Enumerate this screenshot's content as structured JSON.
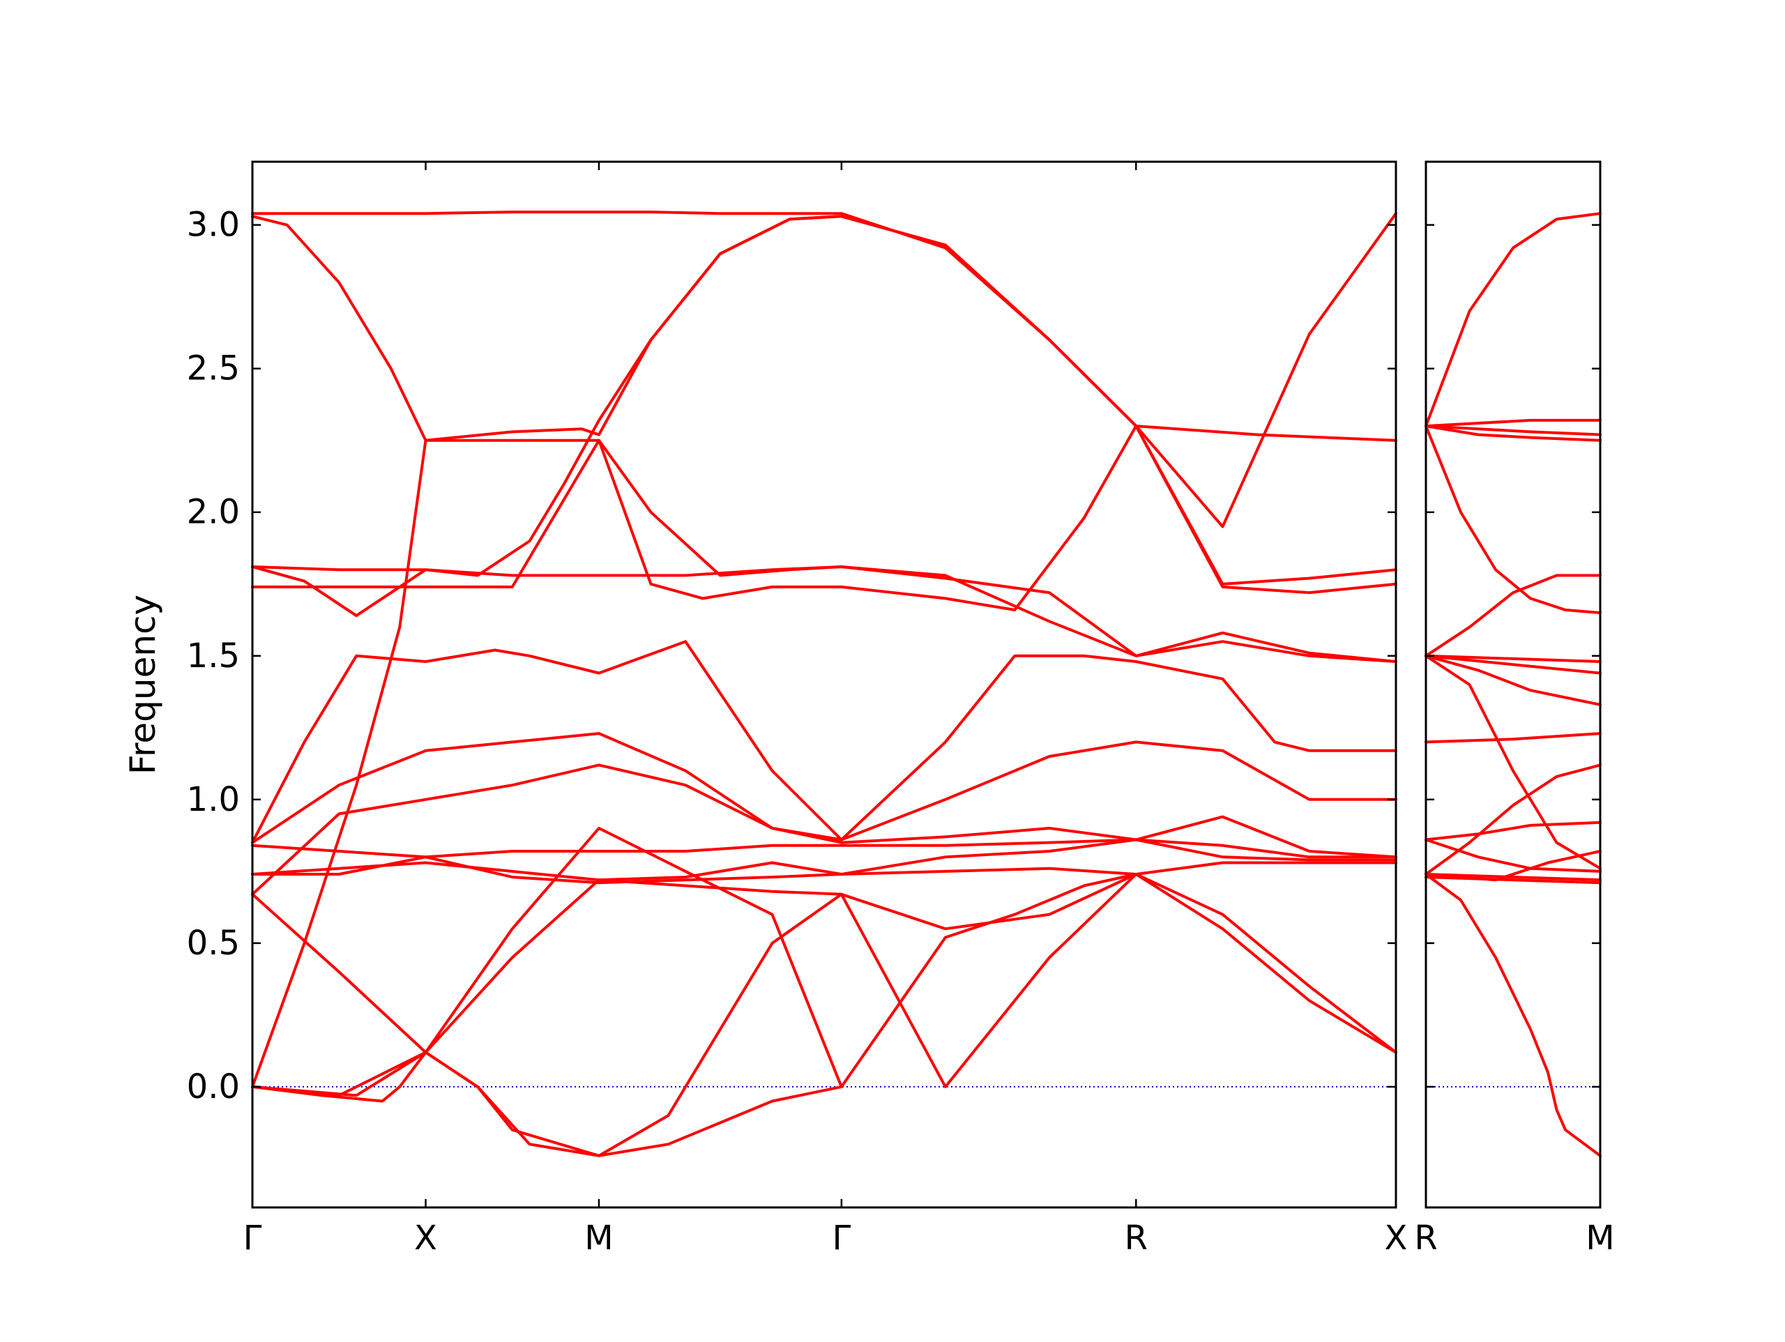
{
  "chart_data": {
    "type": "line",
    "ylabel": "Frequency",
    "ylim": [
      -0.42,
      3.22
    ],
    "y_ticks": [
      "0.0",
      "0.5",
      "1.0",
      "1.5",
      "2.0",
      "2.5",
      "3.0"
    ],
    "y_tick_values": [
      0.0,
      0.5,
      1.0,
      1.5,
      2.0,
      2.5,
      3.0
    ],
    "line_color": "#ff0000",
    "zero_line_color": "#0000cc",
    "grid": false,
    "panels": [
      {
        "name": "main",
        "x_range": [
          0,
          6.6
        ],
        "ticks": [
          {
            "label": "Γ",
            "x": 0.0
          },
          {
            "label": "X",
            "x": 1.0
          },
          {
            "label": "M",
            "x": 2.0
          },
          {
            "label": "Γ",
            "x": 3.4
          },
          {
            "label": "R",
            "x": 5.1
          },
          {
            "label": "X",
            "x": 6.6
          }
        ],
        "series": [
          {
            "x": [
              0,
              0.5,
              1.0,
              1.5,
              2.0,
              2.3,
              2.7,
              3.1,
              3.4,
              4.0,
              4.6,
              5.1,
              5.8,
              6.6
            ],
            "y": [
              3.04,
              3.04,
              3.04,
              3.045,
              3.045,
              3.045,
              3.04,
              3.04,
              3.04,
              2.92,
              2.6,
              2.3,
              2.27,
              2.25
            ]
          },
          {
            "x": [
              0,
              0.2,
              0.5,
              0.8,
              1.0,
              1.5,
              2.0,
              2.3,
              2.7,
              3.1,
              3.4,
              4.0,
              4.6,
              5.1,
              5.6,
              6.1,
              6.6
            ],
            "y": [
              3.03,
              3.0,
              2.8,
              2.5,
              2.25,
              2.25,
              2.25,
              2.0,
              1.78,
              1.8,
              1.81,
              1.77,
              1.72,
              1.5,
              1.55,
              1.5,
              1.48
            ]
          },
          {
            "x": [
              0,
              0.3,
              0.6,
              0.85,
              1.0,
              1.5,
              1.9,
              2.0,
              2.3,
              2.7,
              3.1,
              3.4,
              4.0,
              4.6,
              5.1,
              5.6,
              6.1,
              6.6
            ],
            "y": [
              0.0,
              0.5,
              1.05,
              1.6,
              2.25,
              2.28,
              2.29,
              2.27,
              2.6,
              2.9,
              3.02,
              3.03,
              2.93,
              2.6,
              2.3,
              1.75,
              1.77,
              1.8
            ]
          },
          {
            "x": [
              0,
              0.3,
              0.6,
              1.0,
              1.3,
              1.6,
              1.8,
              2.0,
              2.3,
              2.7,
              3.1,
              3.4,
              4.0,
              4.6,
              5.1,
              5.6,
              6.1,
              6.6
            ],
            "y": [
              1.81,
              1.76,
              1.64,
              1.8,
              1.78,
              1.9,
              2.1,
              2.32,
              2.6,
              2.9,
              3.02,
              3.03,
              2.93,
              2.6,
              2.3,
              1.95,
              2.62,
              3.04
            ]
          },
          {
            "x": [
              0,
              0.4,
              0.7,
              1.0,
              1.5,
              2.0,
              2.3,
              2.6,
              3.0,
              3.4,
              4.0,
              4.4,
              4.8,
              5.1,
              5.6,
              6.1,
              6.6
            ],
            "y": [
              1.74,
              1.74,
              1.74,
              1.74,
              1.74,
              2.25,
              1.75,
              1.7,
              1.74,
              1.74,
              1.7,
              1.66,
              1.98,
              2.3,
              1.74,
              1.72,
              1.75
            ]
          },
          {
            "x": [
              0,
              0.5,
              1.0,
              1.5,
              2.0,
              2.5,
              3.0,
              3.4,
              4.0,
              4.6,
              5.1,
              5.6,
              6.1,
              6.6
            ],
            "y": [
              1.81,
              1.8,
              1.8,
              1.78,
              1.78,
              1.78,
              1.8,
              1.81,
              1.78,
              1.62,
              1.5,
              1.58,
              1.51,
              1.48
            ]
          },
          {
            "x": [
              0,
              0.3,
              0.6,
              1.0,
              1.4,
              1.6,
              2.0,
              2.5,
              3.0,
              3.4,
              4.0,
              4.4,
              4.8,
              5.1,
              5.6,
              5.9,
              6.1,
              6.6
            ],
            "y": [
              0.85,
              1.2,
              1.5,
              1.48,
              1.52,
              1.5,
              1.44,
              1.55,
              1.1,
              0.86,
              1.2,
              1.5,
              1.5,
              1.48,
              1.42,
              1.2,
              1.17,
              1.17
            ]
          },
          {
            "x": [
              0,
              0.5,
              1.0,
              1.5,
              2.0,
              2.5,
              3.0,
              3.4,
              4.0,
              4.6,
              5.1,
              5.6,
              6.1,
              6.6
            ],
            "y": [
              0.85,
              1.05,
              1.17,
              1.2,
              1.23,
              1.1,
              0.9,
              0.86,
              1.0,
              1.15,
              1.2,
              1.17,
              1.0,
              1.0
            ]
          },
          {
            "x": [
              0,
              0.5,
              1.0,
              1.5,
              2.0,
              2.5,
              3.0,
              3.4,
              4.0,
              4.6,
              5.1,
              5.6,
              6.1,
              6.6
            ],
            "y": [
              0.67,
              0.95,
              1.0,
              1.05,
              1.12,
              1.05,
              0.9,
              0.85,
              0.87,
              0.9,
              0.86,
              0.94,
              0.82,
              0.8
            ]
          },
          {
            "x": [
              0,
              0.5,
              1.0,
              1.5,
              2.0,
              2.5,
              3.0,
              3.4,
              4.0,
              4.6,
              5.1,
              5.6,
              6.1,
              6.6
            ],
            "y": [
              0.84,
              0.82,
              0.8,
              0.82,
              0.82,
              0.82,
              0.84,
              0.84,
              0.84,
              0.85,
              0.86,
              0.84,
              0.8,
              0.8
            ]
          },
          {
            "x": [
              0,
              0.5,
              1.0,
              1.5,
              2.0,
              2.5,
              3.0,
              3.4,
              4.0,
              4.6,
              5.1,
              5.6,
              6.1,
              6.6
            ],
            "y": [
              0.74,
              0.76,
              0.78,
              0.75,
              0.72,
              0.73,
              0.78,
              0.74,
              0.8,
              0.82,
              0.86,
              0.8,
              0.79,
              0.79
            ]
          },
          {
            "x": [
              0,
              0.5,
              1.0,
              1.5,
              2.0,
              2.5,
              3.0,
              3.4,
              4.0,
              4.6,
              5.1,
              5.6,
              6.1,
              6.6
            ],
            "y": [
              0.74,
              0.74,
              0.8,
              0.73,
              0.71,
              0.72,
              0.73,
              0.74,
              0.75,
              0.76,
              0.74,
              0.78,
              0.78,
              0.78
            ]
          },
          {
            "x": [
              0,
              0.5,
              1.0,
              1.5,
              2.0,
              2.5,
              3.0,
              3.4,
              4.0,
              4.6,
              5.1,
              5.6,
              6.1,
              6.6
            ],
            "y": [
              0.67,
              0.4,
              0.12,
              0.45,
              0.72,
              0.7,
              0.68,
              0.67,
              0.55,
              0.6,
              0.74,
              0.6,
              0.35,
              0.12
            ]
          },
          {
            "x": [
              0,
              0.5,
              1.0,
              1.5,
              2.0,
              2.5,
              3.0,
              3.4,
              4.0,
              4.4,
              4.8,
              5.1,
              5.6,
              6.1,
              6.6
            ],
            "y": [
              0.0,
              -0.03,
              0.12,
              0.55,
              0.9,
              0.75,
              0.6,
              0.0,
              0.52,
              0.6,
              0.7,
              0.74,
              0.55,
              0.3,
              0.12
            ]
          },
          {
            "x": [
              0,
              0.4,
              0.75,
              0.85,
              1.0,
              1.3,
              1.5,
              2.0,
              2.4,
              2.5,
              3.0,
              3.4,
              4.0,
              4.6,
              5.1
            ],
            "y": [
              0.0,
              -0.03,
              -0.05,
              0.0,
              0.12,
              0.0,
              -0.15,
              -0.24,
              -0.1,
              0.0,
              0.5,
              0.67,
              0.0,
              0.45,
              0.74
            ]
          },
          {
            "x": [
              0,
              0.6,
              1.0,
              1.3,
              1.6,
              2.0,
              2.4,
              3.0,
              3.4
            ],
            "y": [
              0.0,
              -0.03,
              0.12,
              0.0,
              -0.2,
              -0.24,
              -0.2,
              -0.05,
              0.0
            ]
          }
        ]
      },
      {
        "name": "right",
        "x_range": [
          0,
          1.0
        ],
        "ticks": [
          {
            "label": "R",
            "x": 0.0
          },
          {
            "label": "M",
            "x": 1.0
          }
        ],
        "series": [
          {
            "x": [
              0,
              0.25,
              0.5,
              0.75,
              1.0
            ],
            "y": [
              2.3,
              2.7,
              2.92,
              3.02,
              3.04
            ]
          },
          {
            "x": [
              0,
              0.3,
              0.6,
              1.0
            ],
            "y": [
              2.3,
              2.31,
              2.32,
              2.32
            ]
          },
          {
            "x": [
              0,
              0.3,
              0.6,
              1.0
            ],
            "y": [
              2.3,
              2.29,
              2.28,
              2.27
            ]
          },
          {
            "x": [
              0,
              0.3,
              0.6,
              1.0
            ],
            "y": [
              2.3,
              2.27,
              2.26,
              2.25
            ]
          },
          {
            "x": [
              0,
              0.2,
              0.4,
              0.6,
              0.8,
              1.0
            ],
            "y": [
              2.3,
              2.0,
              1.8,
              1.7,
              1.66,
              1.65
            ]
          },
          {
            "x": [
              0,
              0.25,
              0.5,
              0.75,
              1.0
            ],
            "y": [
              1.5,
              1.6,
              1.72,
              1.78,
              1.78
            ]
          },
          {
            "x": [
              0,
              0.5,
              1.0
            ],
            "y": [
              1.5,
              1.49,
              1.48
            ]
          },
          {
            "x": [
              0,
              0.5,
              1.0
            ],
            "y": [
              1.5,
              1.47,
              1.44
            ]
          },
          {
            "x": [
              0,
              0.3,
              0.6,
              1.0
            ],
            "y": [
              1.5,
              1.45,
              1.38,
              1.33
            ]
          },
          {
            "x": [
              0,
              0.25,
              0.5,
              0.75,
              1.0
            ],
            "y": [
              1.5,
              1.4,
              1.1,
              0.85,
              0.76
            ]
          },
          {
            "x": [
              0,
              0.5,
              1.0
            ],
            "y": [
              1.2,
              1.21,
              1.23
            ]
          },
          {
            "x": [
              0,
              0.3,
              0.6,
              1.0
            ],
            "y": [
              0.86,
              0.88,
              0.91,
              0.92
            ]
          },
          {
            "x": [
              0,
              0.25,
              0.5,
              0.75,
              1.0
            ],
            "y": [
              0.74,
              0.85,
              0.98,
              1.08,
              1.12
            ]
          },
          {
            "x": [
              0,
              0.3,
              0.6,
              1.0
            ],
            "y": [
              0.86,
              0.8,
              0.76,
              0.75
            ]
          },
          {
            "x": [
              0,
              0.4,
              0.7,
              1.0
            ],
            "y": [
              0.74,
              0.72,
              0.78,
              0.82
            ]
          },
          {
            "x": [
              0,
              0.5,
              1.0
            ],
            "y": [
              0.74,
              0.73,
              0.72
            ]
          },
          {
            "x": [
              0,
              0.5,
              1.0
            ],
            "y": [
              0.73,
              0.72,
              0.71
            ]
          },
          {
            "x": [
              0,
              0.2,
              0.4,
              0.6,
              0.7,
              0.75,
              0.8,
              1.0
            ],
            "y": [
              0.74,
              0.65,
              0.45,
              0.2,
              0.05,
              -0.08,
              -0.15,
              -0.24
            ]
          }
        ]
      }
    ]
  }
}
